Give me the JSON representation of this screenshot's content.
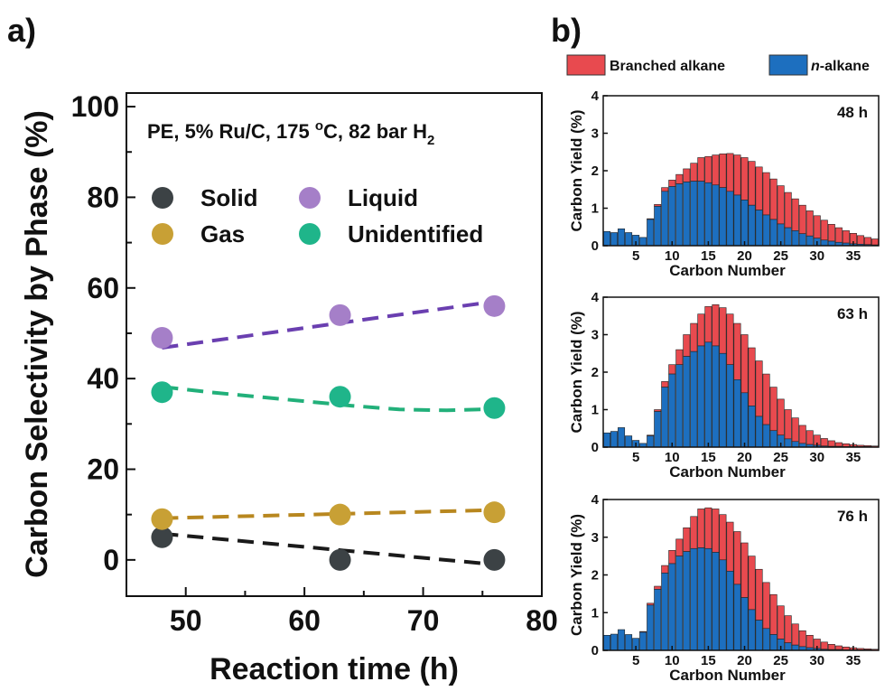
{
  "panel_labels": {
    "a": "a)",
    "b": "b)"
  },
  "chart_data": [
    {
      "type": "scatter",
      "panel": "a",
      "xlabel": "Reaction time (h)",
      "ylabel": "Carbon Selectivity by Phase (%)",
      "annotation_prefix": "PE, 5% Ru/C, 175 ",
      "annotation_degree": "o",
      "annotation_mid": "C, 82 bar H",
      "annotation_sub": "2",
      "xlim": [
        45,
        80
      ],
      "ylim": [
        -8,
        103
      ],
      "xticks": [
        50,
        60,
        70,
        80
      ],
      "yticks": [
        0,
        20,
        40,
        60,
        80,
        100
      ],
      "legend_placement": "upper-left",
      "grid": false,
      "series": [
        {
          "name": "Solid",
          "color": "#3c4245",
          "x": [
            48,
            63,
            76
          ],
          "y": [
            5,
            0,
            0
          ],
          "trend": [
            [
              48,
              5.8
            ],
            [
              76,
              -1.0
            ]
          ]
        },
        {
          "name": "Liquid",
          "color": "#a57fc8",
          "x": [
            48,
            63,
            76
          ],
          "y": [
            49,
            54,
            56
          ],
          "trend": [
            [
              48,
              46.8
            ],
            [
              76,
              57.0
            ]
          ]
        },
        {
          "name": "Gas",
          "color": "#c8a035",
          "x": [
            48,
            63,
            76
          ],
          "y": [
            9,
            10,
            10.5
          ],
          "trend": [
            [
              48,
              9.2
            ],
            [
              76,
              11.0
            ]
          ]
        },
        {
          "name": "Unidentified",
          "color": "#1fb58a",
          "x": [
            48,
            63,
            76
          ],
          "y": [
            37,
            36,
            33.5
          ],
          "trend": [
            [
              48,
              38.2
            ],
            [
              52,
              37.0
            ],
            [
              56,
              36.0
            ],
            [
              60,
              35.0
            ],
            [
              64,
              34.0
            ],
            [
              68,
              33.2
            ],
            [
              72,
              33.0
            ],
            [
              76,
              33.3
            ]
          ]
        }
      ],
      "trend_colors": {
        "Solid": "#1a1a1a",
        "Liquid": "#6a3fb0",
        "Gas": "#b8871f",
        "Unidentified": "#22b07a"
      }
    },
    {
      "type": "bar",
      "panel": "b",
      "stacked": true,
      "xlabel": "Carbon Number",
      "ylabel": "Carbon Yield (%)",
      "ylim": [
        0,
        4
      ],
      "yticks": [
        0,
        1,
        2,
        3,
        4
      ],
      "xticks": [
        5,
        10,
        15,
        20,
        25,
        30,
        35
      ],
      "legend_placement": "top",
      "series_meta": [
        {
          "name": "Branched alkane",
          "color": "#e84a4f"
        },
        {
          "name": "n-alkane",
          "color": "#1d6fbf"
        }
      ],
      "legend_italic_prefix": "n",
      "legend_rest": "-alkane",
      "categories": [
        1,
        2,
        3,
        4,
        5,
        6,
        7,
        8,
        9,
        10,
        11,
        12,
        13,
        14,
        15,
        16,
        17,
        18,
        19,
        20,
        21,
        22,
        23,
        24,
        25,
        26,
        27,
        28,
        29,
        30,
        31,
        32,
        33,
        34,
        35,
        36,
        37,
        38
      ],
      "subplots": [
        {
          "label": "48 h",
          "n_alkane": [
            0.38,
            0.35,
            0.45,
            0.35,
            0.28,
            0.22,
            0.7,
            1.05,
            1.45,
            1.58,
            1.65,
            1.7,
            1.72,
            1.72,
            1.68,
            1.62,
            1.55,
            1.45,
            1.35,
            1.22,
            1.08,
            0.95,
            0.82,
            0.7,
            0.58,
            0.48,
            0.4,
            0.32,
            0.26,
            0.2,
            0.15,
            0.12,
            0.09,
            0.07,
            0.05,
            0.04,
            0.03,
            0.02
          ],
          "total": [
            0.38,
            0.35,
            0.45,
            0.35,
            0.28,
            0.22,
            0.72,
            1.1,
            1.55,
            1.75,
            1.9,
            2.05,
            2.2,
            2.35,
            2.38,
            2.42,
            2.45,
            2.46,
            2.42,
            2.35,
            2.25,
            2.1,
            1.95,
            1.78,
            1.6,
            1.42,
            1.25,
            1.08,
            0.93,
            0.8,
            0.68,
            0.57,
            0.48,
            0.4,
            0.33,
            0.27,
            0.22,
            0.18
          ]
        },
        {
          "label": "63 h",
          "n_alkane": [
            0.38,
            0.42,
            0.52,
            0.3,
            0.18,
            0.1,
            0.3,
            0.95,
            1.6,
            1.95,
            2.2,
            2.42,
            2.55,
            2.7,
            2.8,
            2.7,
            2.5,
            2.2,
            1.8,
            1.45,
            1.1,
            0.82,
            0.6,
            0.44,
            0.32,
            0.22,
            0.15,
            0.1,
            0.07,
            0.05,
            0.03,
            0.02,
            0.02,
            0.01,
            0.01,
            0.01,
            0.01,
            0.0
          ],
          "total": [
            0.38,
            0.42,
            0.52,
            0.3,
            0.18,
            0.1,
            0.32,
            1.0,
            1.75,
            2.2,
            2.6,
            3.0,
            3.3,
            3.55,
            3.75,
            3.8,
            3.72,
            3.55,
            3.3,
            3.0,
            2.65,
            2.3,
            1.95,
            1.6,
            1.28,
            1.0,
            0.78,
            0.58,
            0.44,
            0.32,
            0.23,
            0.17,
            0.12,
            0.09,
            0.07,
            0.05,
            0.04,
            0.03
          ]
        },
        {
          "label": "76 h",
          "n_alkane": [
            0.4,
            0.43,
            0.55,
            0.42,
            0.32,
            0.48,
            1.2,
            1.62,
            2.05,
            2.3,
            2.5,
            2.62,
            2.7,
            2.72,
            2.7,
            2.6,
            2.4,
            2.1,
            1.75,
            1.4,
            1.08,
            0.8,
            0.58,
            0.42,
            0.3,
            0.2,
            0.14,
            0.1,
            0.07,
            0.05,
            0.03,
            0.02,
            0.02,
            0.01,
            0.01,
            0.01,
            0.01,
            0.0
          ],
          "total": [
            0.4,
            0.43,
            0.55,
            0.42,
            0.32,
            0.5,
            1.25,
            1.7,
            2.25,
            2.65,
            2.95,
            3.25,
            3.55,
            3.75,
            3.78,
            3.75,
            3.6,
            3.4,
            3.15,
            2.85,
            2.5,
            2.15,
            1.8,
            1.48,
            1.18,
            0.92,
            0.7,
            0.52,
            0.4,
            0.3,
            0.22,
            0.16,
            0.12,
            0.09,
            0.07,
            0.05,
            0.04,
            0.03
          ]
        }
      ]
    }
  ]
}
